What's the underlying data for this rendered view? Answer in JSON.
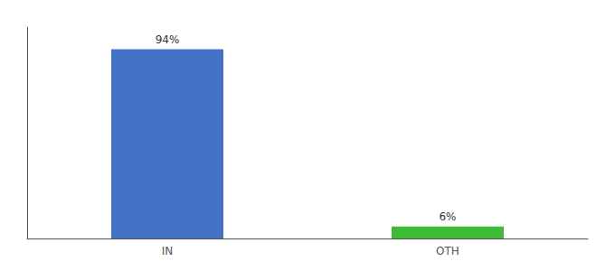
{
  "chart_data": {
    "type": "bar",
    "categories": [
      "IN",
      "OTH"
    ],
    "values": [
      94,
      6
    ],
    "value_labels": [
      "94%",
      "6%"
    ],
    "colors": [
      "#4472c4",
      "#3dbb35"
    ],
    "ylim": [
      0,
      105
    ],
    "data_labels": true,
    "tick_labels": "x",
    "grid": false
  }
}
